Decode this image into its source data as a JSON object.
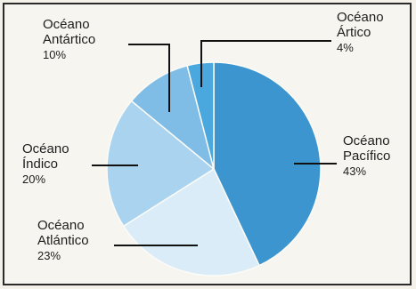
{
  "chart_data": {
    "type": "pie",
    "title": "",
    "slices": [
      {
        "label_lines": [
          "Océano",
          "Pacífico"
        ],
        "value": 43,
        "pct_label": "43%",
        "color": "#3d95cf"
      },
      {
        "label_lines": [
          "Océano",
          "Atlántico"
        ],
        "value": 23,
        "pct_label": "23%",
        "color": "#d9ecf8"
      },
      {
        "label_lines": [
          "Océano",
          "Índico"
        ],
        "value": 20,
        "pct_label": "20%",
        "color": "#a9d3ef"
      },
      {
        "label_lines": [
          "Océano",
          "Antártico"
        ],
        "value": 10,
        "pct_label": "10%",
        "color": "#7fbde7"
      },
      {
        "label_lines": [
          "Océano",
          "Ártico"
        ],
        "value": 4,
        "pct_label": "4%",
        "color": "#4aa8df"
      }
    ]
  }
}
